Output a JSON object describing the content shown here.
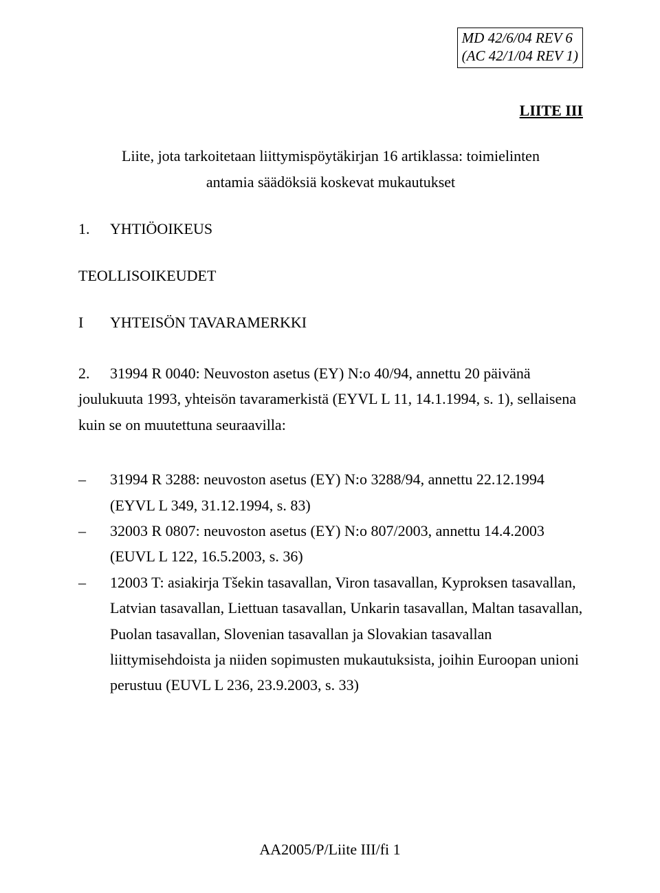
{
  "ref_box": {
    "line1": "MD 42/6/04 REV 6",
    "line2": "(AC 42/1/04 REV 1)"
  },
  "title": "LIITE III",
  "intro": {
    "line1": "Liite, jota tarkoitetaan liittymispöytäkirjan 16 artiklassa: toimielinten",
    "line2": "antamia säädöksiä koskevat mukautukset"
  },
  "section1": {
    "num": "1.",
    "label": "YHTIÖOIKEUS"
  },
  "heading2": "TEOLLISOIKEUDET",
  "subheading": {
    "roman": "I",
    "label": "YHTEISÖN TAVARAMERKKI"
  },
  "para2": {
    "num": "2.",
    "text": "31994 R 0040: Neuvoston asetus (EY) N:o 40/94, annettu 20 päivänä joulukuuta 1993, yhteisön tavaramerkistä (EYVL L 11, 14.1.1994, s. 1), sellaisena kuin se on muutettuna seuraavilla:"
  },
  "list": [
    "31994 R 3288: neuvoston asetus (EY) N:o 3288/94, annettu 22.12.1994 (EYVL L 349, 31.12.1994, s. 83)",
    "32003 R 0807: neuvoston asetus (EY) N:o 807/2003, annettu 14.4.2003 (EUVL L 122, 16.5.2003, s. 36)",
    "12003 T: asiakirja Tšekin tasavallan, Viron tasavallan, Kyproksen tasavallan, Latvian tasavallan, Liettuan tasavallan, Unkarin tasavallan, Maltan tasavallan, Puolan tasavallan, Slovenian tasavallan ja Slovakian tasavallan liittymisehdoista ja niiden sopimusten mukautuksista, joihin Euroopan unioni perustuu (EUVL L 236, 23.9.2003, s. 33)"
  ],
  "footer": "AA2005/P/Liite III/fi 1"
}
